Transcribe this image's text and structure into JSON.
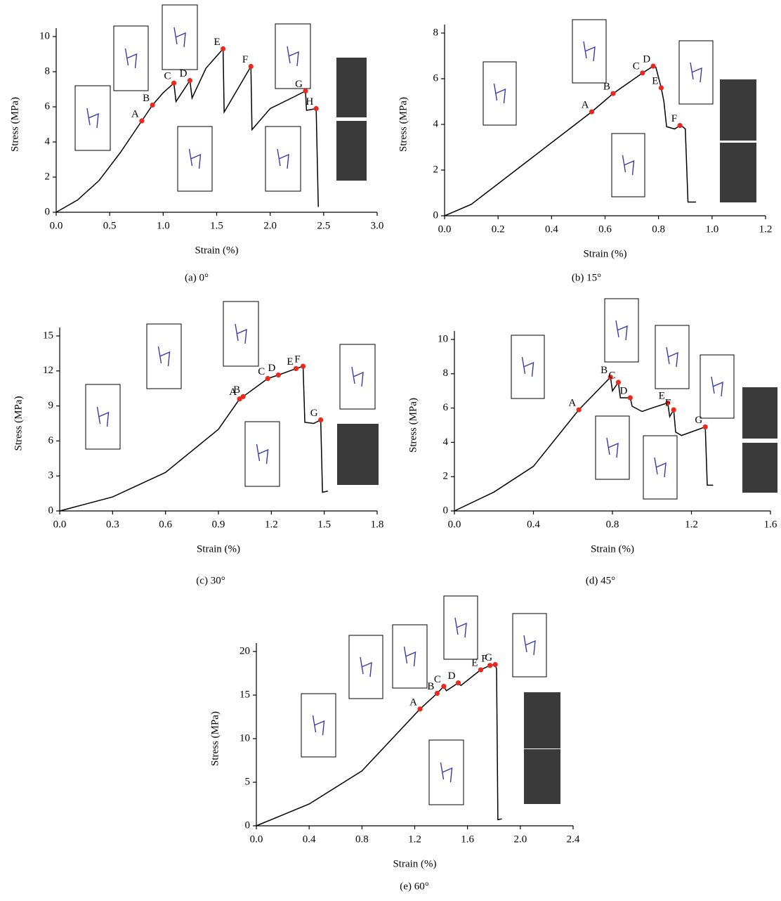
{
  "chart_data": [
    {
      "type": "line",
      "caption": "(a) 0°",
      "xlabel": "Strain (%)",
      "ylabel": "Stress (MPa)",
      "xlim": [
        0,
        3
      ],
      "ylim": [
        0,
        10
      ],
      "xticks": [
        {
          "value": 0,
          "label": "0.0"
        },
        0.5,
        {
          "value": 1,
          "label": "1.0"
        },
        1.5,
        {
          "value": 2,
          "label": "2.0"
        },
        2.5,
        {
          "value": 3,
          "label": "3.0"
        }
      ],
      "yticks": [
        0,
        2,
        4,
        6,
        8,
        10
      ],
      "color": "#000000",
      "x": [
        0,
        0.2,
        0.4,
        0.6,
        0.8,
        0.9,
        1.0,
        1.1,
        1.12,
        1.25,
        1.27,
        1.4,
        1.56,
        1.57,
        1.82,
        1.83,
        2.0,
        2.2,
        2.33,
        2.34,
        2.43,
        2.45
      ],
      "values": [
        0,
        0.7,
        1.8,
        3.4,
        5.2,
        6.1,
        6.8,
        7.35,
        6.3,
        7.5,
        6.5,
        8.2,
        9.3,
        5.7,
        8.3,
        4.7,
        5.9,
        6.5,
        6.9,
        5.8,
        5.9,
        0.3
      ],
      "points": {
        "color": "#e8291c",
        "labels": [
          "A",
          "B",
          "C",
          "D",
          "E",
          "F",
          "G",
          "H"
        ],
        "x": [
          0.8,
          0.9,
          1.1,
          1.25,
          1.56,
          1.82,
          2.33,
          2.43
        ],
        "values": [
          5.2,
          6.1,
          7.35,
          7.5,
          9.3,
          8.3,
          6.9,
          5.9
        ]
      }
    },
    {
      "type": "line",
      "caption": "(b) 15°",
      "xlabel": "Strain (%)",
      "ylabel": "Stress (MPa)",
      "xlim": [
        0,
        1.2
      ],
      "ylim": [
        0,
        8
      ],
      "xticks": [
        {
          "value": 0,
          "label": "0.0"
        },
        0.2,
        0.4,
        0.6,
        0.8,
        {
          "value": 1,
          "label": "1.0"
        },
        1.2
      ],
      "yticks": [
        0,
        2,
        4,
        6,
        8
      ],
      "color": "#000000",
      "x": [
        0,
        0.1,
        0.2,
        0.3,
        0.4,
        0.55,
        0.63,
        0.74,
        0.78,
        0.79,
        0.81,
        0.82,
        0.83,
        0.86,
        0.88,
        0.89,
        0.9,
        0.91,
        0.94
      ],
      "values": [
        0,
        0.5,
        1.4,
        2.3,
        3.2,
        4.55,
        5.35,
        6.25,
        6.55,
        6.5,
        5.6,
        5.0,
        3.9,
        3.8,
        3.95,
        3.9,
        3.8,
        0.6,
        0.6
      ],
      "points": {
        "color": "#e8291c",
        "labels": [
          "A",
          "B",
          "C",
          "D",
          "E",
          "F"
        ],
        "x": [
          0.55,
          0.63,
          0.74,
          0.78,
          0.81,
          0.88
        ],
        "values": [
          4.55,
          5.35,
          6.25,
          6.55,
          5.6,
          3.95
        ]
      }
    },
    {
      "type": "line",
      "caption": "(c) 30°",
      "xlabel": "Strain (%)",
      "ylabel": "Stress (MPa)",
      "xlim": [
        0,
        1.8
      ],
      "ylim": [
        0,
        15
      ],
      "xticks": [
        {
          "value": 0,
          "label": "0.0"
        },
        0.3,
        0.6,
        0.9,
        1.2,
        1.5,
        1.8
      ],
      "yticks": [
        0,
        3,
        6,
        9,
        12,
        15
      ],
      "color": "#000000",
      "x": [
        0,
        0.3,
        0.6,
        0.9,
        1.02,
        1.04,
        1.18,
        1.24,
        1.34,
        1.38,
        1.39,
        1.44,
        1.48,
        1.49,
        1.52
      ],
      "values": [
        0,
        1.2,
        3.3,
        7.0,
        9.6,
        9.8,
        11.35,
        11.65,
        12.2,
        12.4,
        7.6,
        7.5,
        7.8,
        1.6,
        1.7
      ],
      "points": {
        "color": "#e8291c",
        "labels": [
          "A",
          "B",
          "C",
          "D",
          "E",
          "F",
          "G"
        ],
        "x": [
          1.02,
          1.04,
          1.18,
          1.24,
          1.34,
          1.38,
          1.48
        ],
        "values": [
          9.6,
          9.8,
          11.35,
          11.65,
          12.2,
          12.4,
          7.8
        ]
      }
    },
    {
      "type": "line",
      "caption": "(d) 45°",
      "xlabel": "Strain (%)",
      "ylabel": "Stress (MPa)",
      "xlim": [
        0,
        1.6
      ],
      "ylim": [
        0,
        10
      ],
      "xticks": [
        {
          "value": 0,
          "label": "0.0"
        },
        0.4,
        0.8,
        1.2,
        1.6
      ],
      "yticks": [
        0,
        2,
        4,
        6,
        8,
        10
      ],
      "color": "#000000",
      "x": [
        0,
        0.2,
        0.4,
        0.63,
        0.79,
        0.8,
        0.83,
        0.84,
        0.89,
        0.9,
        0.95,
        1.0,
        1.08,
        1.09,
        1.11,
        1.12,
        1.15,
        1.27,
        1.28,
        1.31
      ],
      "values": [
        0,
        1.1,
        2.6,
        5.9,
        7.8,
        7.0,
        7.5,
        6.6,
        6.6,
        6.1,
        5.8,
        6.0,
        6.3,
        5.5,
        5.9,
        4.6,
        4.4,
        4.9,
        1.5,
        1.5
      ],
      "points": {
        "color": "#e8291c",
        "labels": [
          "A",
          "B",
          "C",
          "D",
          "E",
          "F",
          "G"
        ],
        "x": [
          0.63,
          0.79,
          0.83,
          0.89,
          1.08,
          1.11,
          1.27
        ],
        "values": [
          5.9,
          7.8,
          7.5,
          6.6,
          6.3,
          5.9,
          4.9
        ]
      }
    },
    {
      "type": "line",
      "caption": "(e) 60°",
      "xlabel": "Strain (%)",
      "ylabel": "Stress (MPa)",
      "xlim": [
        0,
        2.4
      ],
      "ylim": [
        0,
        20
      ],
      "xticks": [
        {
          "value": 0,
          "label": "0.0"
        },
        0.4,
        0.8,
        1.2,
        1.6,
        {
          "value": 2,
          "label": "2.0"
        },
        2.4
      ],
      "yticks": [
        0,
        5,
        10,
        15,
        20
      ],
      "color": "#000000",
      "x": [
        0,
        0.4,
        0.8,
        1.24,
        1.37,
        1.42,
        1.44,
        1.5,
        1.53,
        1.55,
        1.7,
        1.77,
        1.81,
        1.82,
        1.83,
        1.86
      ],
      "values": [
        0,
        2.5,
        6.3,
        13.4,
        15.2,
        16.0,
        15.5,
        16.1,
        16.4,
        16.1,
        17.9,
        18.4,
        18.5,
        18.0,
        0.7,
        0.8
      ],
      "points": {
        "color": "#e8291c",
        "labels": [
          "A",
          "B",
          "C",
          "D",
          "E",
          "F",
          "G"
        ],
        "x": [
          1.24,
          1.37,
          1.42,
          1.53,
          1.7,
          1.77,
          1.81
        ],
        "values": [
          13.4,
          15.2,
          16.0,
          16.4,
          17.9,
          18.4,
          18.5
        ]
      }
    }
  ]
}
